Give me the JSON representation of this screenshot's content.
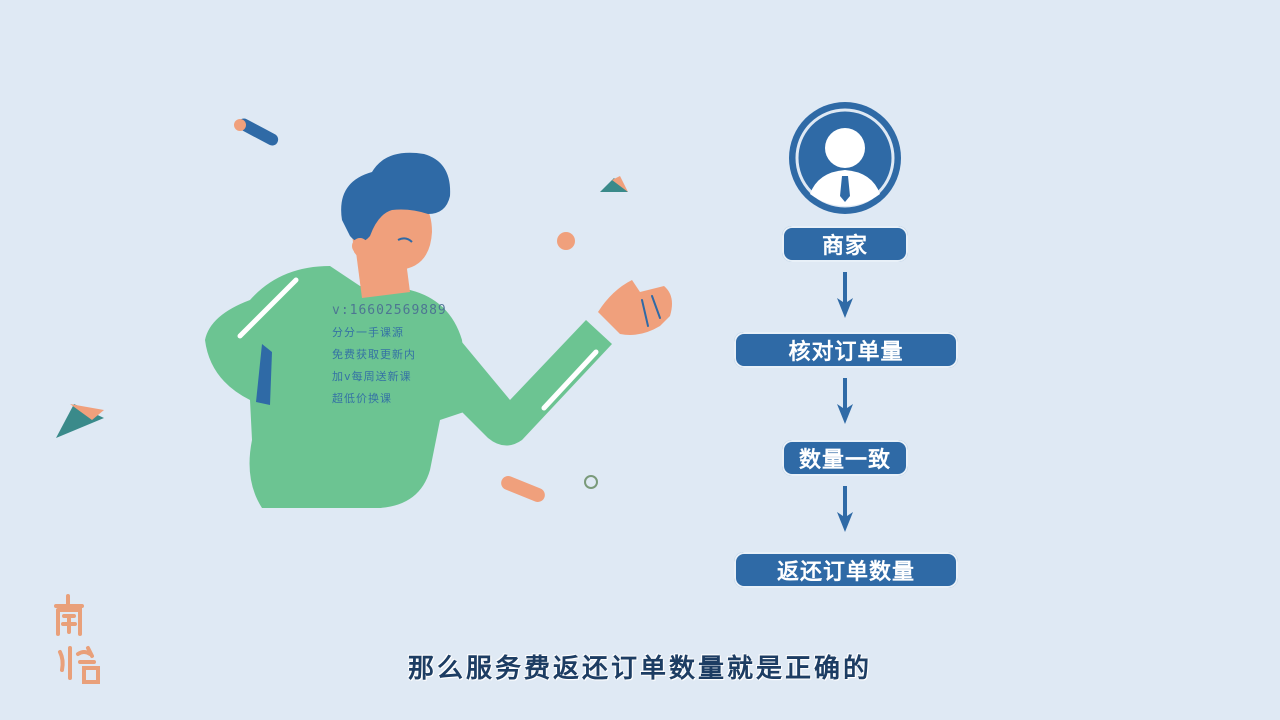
{
  "watermark": {
    "phone": "v:16602569889",
    "lines": [
      "分分一手课源",
      "免费获取更新内",
      "加v每周送新课",
      "超低价换课"
    ]
  },
  "flow": {
    "steps": [
      "商家",
      "核对订单量",
      "数量一致",
      "返还订单数量"
    ]
  },
  "subtitle": "那么服务费返还订单数量就是正确的",
  "logo_text": "南悟",
  "colors": {
    "background": "#dfe9f4",
    "primary_blue": "#2f6aa6",
    "shirt_green": "#6cc492",
    "skin": "#f0a07c",
    "subtitle": "#1d3d63"
  },
  "icons": [
    "merchant-avatar-icon",
    "down-arrow-icon"
  ]
}
